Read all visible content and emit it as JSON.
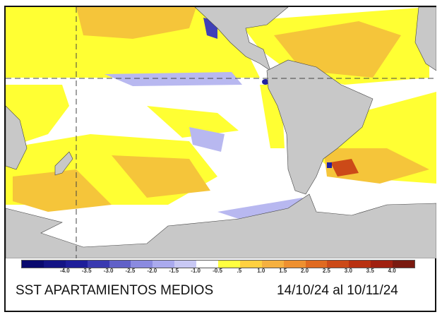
{
  "title": "SST APARTAMIENTOS MEDIOS",
  "period": "14/10/24 al 10/11/24",
  "colorbar": {
    "labels": [
      "-4.0",
      "-3.5",
      "-3.0",
      "-2.5",
      "-2.0",
      "-1.5",
      "-1.0",
      "-0.5",
      ".5",
      "1.0",
      "1.5",
      "2.0",
      "2.5",
      "3.0",
      "3.5",
      "4.0"
    ],
    "colors": [
      "#0a0a6e",
      "#141485",
      "#1e1e9a",
      "#3a3ab0",
      "#6060c8",
      "#8a8ae0",
      "#aaaaee",
      "#c8c8f4",
      "#ffffff",
      "#ffff40",
      "#ffd040",
      "#f5b040",
      "#ee9030",
      "#e06a20",
      "#cc4a18",
      "#b83010",
      "#a02010",
      "#7a1a10"
    ]
  },
  "colors": {
    "land": "#c8c8c8",
    "warm1": "#ffff33",
    "warm2": "#f5c53a",
    "cool": "#b8b8f0",
    "ocean": "#ffffff"
  }
}
